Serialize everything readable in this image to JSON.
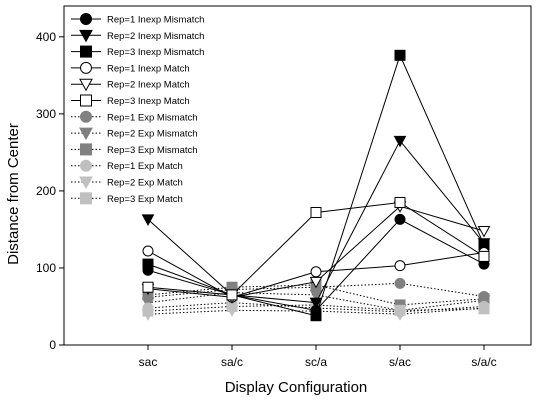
{
  "chart_data": {
    "type": "line",
    "title": "",
    "xlabel": "Display Configuration",
    "ylabel": "Distance from Center",
    "categories": [
      "sac",
      "sa/c",
      "sc/a",
      "s/ac",
      "s/a/c"
    ],
    "ylim": [
      0,
      440
    ],
    "yticks": [
      0,
      100,
      200,
      300,
      400
    ],
    "grid": false,
    "legend_position": "top-left",
    "series": [
      {
        "name": "Rep=1 Inexp Mismatch",
        "marker": "circle",
        "fill": "#000000",
        "line": "solid",
        "values": [
          97,
          65,
          45,
          163,
          105
        ]
      },
      {
        "name": "Rep=2 Inexp Mismatch",
        "marker": "triangle-down",
        "fill": "#000000",
        "line": "solid",
        "values": [
          163,
          65,
          55,
          265,
          132
        ]
      },
      {
        "name": "Rep=3 Inexp Mismatch",
        "marker": "square",
        "fill": "#000000",
        "line": "solid",
        "values": [
          105,
          65,
          38,
          376,
          130
        ]
      },
      {
        "name": "Rep=1 Inexp Match",
        "marker": "circle",
        "fill": "#ffffff",
        "line": "solid",
        "values": [
          122,
          62,
          95,
          103,
          120
        ]
      },
      {
        "name": "Rep=2 Inexp Match",
        "marker": "triangle-down",
        "fill": "#ffffff",
        "line": "solid",
        "values": [
          73,
          62,
          82,
          180,
          148
        ]
      },
      {
        "name": "Rep=3 Inexp Match",
        "marker": "square",
        "fill": "#ffffff",
        "line": "solid",
        "values": [
          75,
          65,
          172,
          185,
          115
        ]
      },
      {
        "name": "Rep=1 Exp Mismatch",
        "marker": "circle",
        "fill": "#808080",
        "line": "dotted",
        "values": [
          62,
          72,
          75,
          80,
          63
        ]
      },
      {
        "name": "Rep=2 Exp Mismatch",
        "marker": "triangle-down",
        "fill": "#808080",
        "line": "dotted",
        "values": [
          55,
          68,
          65,
          45,
          58
        ]
      },
      {
        "name": "Rep=3 Exp Mismatch",
        "marker": "square",
        "fill": "#808080",
        "line": "dotted",
        "values": [
          65,
          75,
          78,
          52,
          60
        ]
      },
      {
        "name": "Rep=1 Exp Match",
        "marker": "circle",
        "fill": "#c0c0c0",
        "line": "dotted",
        "values": [
          48,
          55,
          48,
          43,
          50
        ]
      },
      {
        "name": "Rep=2 Exp Match",
        "marker": "triangle-down",
        "fill": "#c0c0c0",
        "line": "dotted",
        "values": [
          40,
          45,
          44,
          40,
          48
        ]
      },
      {
        "name": "Rep=3 Exp Match",
        "marker": "square",
        "fill": "#c0c0c0",
        "line": "dotted",
        "values": [
          44,
          50,
          52,
          45,
          47
        ]
      }
    ]
  }
}
